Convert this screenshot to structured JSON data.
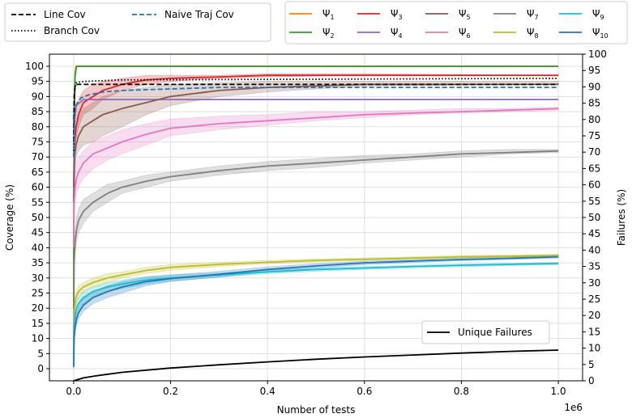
{
  "chart_data": {
    "type": "line",
    "xlabel": "Number of tests",
    "x_offset_label": "1e6",
    "ylabel_left": "Coverage (%)",
    "ylabel_right": "Failures (%)",
    "xlim": [
      -0.05,
      1.05
    ],
    "ylim_left": [
      -4,
      104
    ],
    "ylim_right": [
      0,
      100
    ],
    "x_ticks": [
      "0.0",
      "0.2",
      "0.4",
      "0.6",
      "0.8",
      "1.0"
    ],
    "x_tick_values": [
      0,
      0.2,
      0.4,
      0.6,
      0.8,
      1.0
    ],
    "y_ticks_left": [
      "0",
      "5",
      "10",
      "15",
      "20",
      "25",
      "30",
      "35",
      "40",
      "45",
      "50",
      "55",
      "60",
      "65",
      "70",
      "75",
      "80",
      "85",
      "90",
      "95",
      "100"
    ],
    "y_ticks_right": [
      "0",
      "5",
      "10",
      "15",
      "20",
      "25",
      "30",
      "35",
      "40",
      "45",
      "50",
      "55",
      "60",
      "65",
      "70",
      "75",
      "80",
      "85",
      "90",
      "95",
      "100"
    ],
    "grid": true,
    "legend_top_left": [
      {
        "label": "Line Cov",
        "style": "dashed",
        "color": "#000000"
      },
      {
        "label": "Naive Traj Cov",
        "style": "dashed",
        "color": "#1f77b4"
      },
      {
        "label": "Branch Cov",
        "style": "dotted",
        "color": "#000000"
      }
    ],
    "legend_top_right": [
      {
        "label": "Ψ",
        "sub": "1",
        "color": "#ff7f0e"
      },
      {
        "label": "Ψ",
        "sub": "2",
        "color": "#2ca02c"
      },
      {
        "label": "Ψ",
        "sub": "3",
        "color": "#d62728"
      },
      {
        "label": "Ψ",
        "sub": "4",
        "color": "#9467bd"
      },
      {
        "label": "Ψ",
        "sub": "5",
        "color": "#8c564b"
      },
      {
        "label": "Ψ",
        "sub": "6",
        "color": "#e377c2"
      },
      {
        "label": "Ψ",
        "sub": "7",
        "color": "#7f7f7f"
      },
      {
        "label": "Ψ",
        "sub": "8",
        "color": "#bcbd22"
      },
      {
        "label": "Ψ",
        "sub": "9",
        "color": "#17becf"
      },
      {
        "label": "Ψ",
        "sub": "10",
        "color": "#1f77b4"
      }
    ],
    "legend_bottom_right": {
      "label": "Unique Failures",
      "color": "#000000"
    },
    "series": [
      {
        "name": "Ψ1",
        "color": "#ff7f0e",
        "axis": "left",
        "band": false,
        "x": [
          0,
          0.001,
          0.003,
          0.005,
          1.0
        ],
        "y": [
          20,
          80,
          98,
          100,
          100
        ]
      },
      {
        "name": "Ψ2",
        "color": "#2ca02c",
        "axis": "left",
        "band": false,
        "x": [
          0,
          0.001,
          0.003,
          0.006,
          1.0
        ],
        "y": [
          20,
          85,
          97,
          100,
          100
        ]
      },
      {
        "name": "Ψ3",
        "color": "#d62728",
        "axis": "left",
        "band": true,
        "x": [
          0,
          0.002,
          0.005,
          0.01,
          0.02,
          0.04,
          0.06,
          0.1,
          0.15,
          0.2,
          0.3,
          0.4,
          0.6,
          1.0
        ],
        "y": [
          60,
          75,
          80,
          84,
          88,
          90,
          92,
          94,
          95.5,
          96,
          96.5,
          97,
          97,
          97
        ],
        "band_lo": [
          55,
          70,
          76,
          80,
          84,
          86,
          89,
          92,
          94,
          95,
          96,
          96.5,
          97,
          97
        ],
        "band_hi": [
          70,
          82,
          86,
          89,
          92,
          94,
          95,
          96,
          97,
          97,
          97,
          97.5,
          97.5,
          97
        ]
      },
      {
        "name": "Ψ4",
        "color": "#9467bd",
        "axis": "left",
        "band": false,
        "x": [
          0,
          0.002,
          0.005,
          0.02,
          1.0
        ],
        "y": [
          60,
          82,
          87,
          89,
          89
        ]
      },
      {
        "name": "Ψ5",
        "color": "#8c564b",
        "axis": "left",
        "band": true,
        "x": [
          0,
          0.002,
          0.005,
          0.01,
          0.02,
          0.04,
          0.06,
          0.1,
          0.15,
          0.2,
          0.3,
          0.4,
          0.5,
          0.6,
          1.0
        ],
        "y": [
          55,
          70,
          74,
          77,
          80,
          82,
          84,
          86,
          88,
          90,
          92,
          93,
          93.5,
          94,
          94
        ],
        "band_lo": [
          50,
          65,
          70,
          72,
          74,
          75,
          77,
          80,
          84,
          87,
          90,
          91.5,
          92.5,
          93.5,
          94
        ],
        "band_hi": [
          62,
          76,
          79,
          83,
          86,
          88,
          90,
          92,
          93,
          94,
          94.5,
          95,
          95,
          95,
          95
        ]
      },
      {
        "name": "Ψ6",
        "color": "#e377c2",
        "axis": "left",
        "band": true,
        "x": [
          0,
          0.001,
          0.003,
          0.006,
          0.01,
          0.02,
          0.04,
          0.07,
          0.1,
          0.15,
          0.2,
          0.3,
          0.4,
          0.5,
          0.6,
          0.7,
          0.8,
          0.9,
          1.0
        ],
        "y": [
          40,
          55,
          60,
          63,
          65,
          68,
          71,
          73,
          75,
          77.5,
          79.5,
          81,
          82,
          83,
          84,
          84.5,
          85,
          85.5,
          86
        ],
        "band_lo": [
          35,
          50,
          55,
          58,
          60,
          63,
          66,
          69,
          71,
          74,
          77,
          79,
          80.5,
          82,
          83,
          84,
          84.5,
          85,
          85.5
        ],
        "band_hi": [
          45,
          60,
          65,
          68,
          70,
          72,
          75,
          77,
          79,
          81,
          82.5,
          83.5,
          84,
          85,
          85,
          85.5,
          86,
          86,
          86.5
        ]
      },
      {
        "name": "Ψ7",
        "color": "#7f7f7f",
        "axis": "left",
        "band": true,
        "x": [
          0,
          0.001,
          0.003,
          0.006,
          0.01,
          0.02,
          0.04,
          0.07,
          0.1,
          0.15,
          0.2,
          0.25,
          0.3,
          0.4,
          0.5,
          0.6,
          0.7,
          0.8,
          0.9,
          1.0
        ],
        "y": [
          5,
          35,
          42,
          46,
          49,
          52,
          55,
          58,
          60,
          62,
          63.5,
          64.5,
          65.5,
          67,
          68,
          69,
          70,
          71,
          71.5,
          72
        ],
        "band_lo": [
          3,
          30,
          38,
          42,
          45,
          48,
          52,
          55,
          58,
          60,
          62,
          63,
          64,
          65.5,
          66.5,
          68,
          69,
          70,
          71,
          71.5
        ],
        "band_hi": [
          8,
          40,
          46,
          50,
          53,
          56,
          58,
          61,
          62,
          64,
          65,
          66,
          67,
          68.5,
          69.5,
          70.5,
          71,
          72,
          72.5,
          72.5
        ]
      },
      {
        "name": "Ψ8",
        "color": "#bcbd22",
        "axis": "left",
        "band": true,
        "x": [
          0,
          0.001,
          0.003,
          0.006,
          0.01,
          0.02,
          0.04,
          0.07,
          0.1,
          0.15,
          0.2,
          0.3,
          0.4,
          0.5,
          0.6,
          0.7,
          0.8,
          0.9,
          1.0
        ],
        "y": [
          2,
          18,
          22,
          24,
          25.5,
          27,
          28.5,
          30,
          31,
          32.5,
          33.5,
          34.5,
          35.2,
          35.8,
          36.2,
          36.6,
          37,
          37.2,
          37.5
        ],
        "band_lo": [
          1,
          15,
          20,
          22,
          23.5,
          25.5,
          27,
          28.5,
          30,
          31.5,
          32.5,
          33.8,
          34.7,
          35.3,
          35.8,
          36.2,
          36.6,
          36.9,
          37.2
        ],
        "band_hi": [
          3,
          21,
          24,
          26,
          27.5,
          28.5,
          30,
          31.5,
          32,
          33.5,
          34.5,
          35.2,
          35.8,
          36.3,
          36.6,
          37,
          37.4,
          37.6,
          37.8
        ]
      },
      {
        "name": "Ψ9",
        "color": "#17becf",
        "axis": "left",
        "band": true,
        "x": [
          0,
          0.001,
          0.003,
          0.006,
          0.01,
          0.02,
          0.04,
          0.07,
          0.1,
          0.15,
          0.2,
          0.3,
          0.4,
          0.5,
          0.6,
          0.7,
          0.8,
          0.9,
          1.0
        ],
        "y": [
          1,
          14,
          18,
          20,
          21.5,
          23.5,
          25.5,
          27,
          28,
          29.3,
          30,
          31,
          32,
          32.8,
          33.3,
          33.8,
          34.2,
          34.5,
          34.8
        ],
        "band_lo": [
          0.5,
          12,
          16,
          18,
          19.5,
          21.5,
          24,
          25.5,
          26.5,
          28,
          29,
          30.3,
          31.4,
          32.2,
          32.8,
          33.3,
          33.7,
          34.1,
          34.4
        ],
        "band_hi": [
          2,
          16,
          20,
          22,
          23.5,
          25.5,
          27,
          28.5,
          29.3,
          30.5,
          31,
          31.7,
          32.6,
          33.3,
          33.8,
          34.2,
          34.6,
          34.9,
          35.2
        ]
      },
      {
        "name": "Ψ10",
        "color": "#1f77b4",
        "axis": "left",
        "band": true,
        "x": [
          0,
          0.001,
          0.003,
          0.006,
          0.01,
          0.02,
          0.04,
          0.07,
          0.1,
          0.15,
          0.2,
          0.3,
          0.4,
          0.5,
          0.6,
          0.7,
          0.8,
          0.9,
          1.0
        ],
        "y": [
          0.5,
          10,
          14,
          16.5,
          18.5,
          21,
          23.5,
          25.5,
          27,
          28.8,
          29.8,
          31.2,
          32.8,
          34,
          35,
          35.6,
          36.1,
          36.5,
          37
        ],
        "band_lo": [
          0,
          8,
          12,
          14.5,
          16.5,
          19,
          21.5,
          23.5,
          25,
          27.5,
          28.8,
          30.3,
          32,
          33.3,
          34.4,
          35.1,
          35.7,
          36.1,
          36.6
        ],
        "band_hi": [
          1,
          12,
          16,
          18.5,
          20.5,
          23,
          25.5,
          27.5,
          28.8,
          30.2,
          31,
          32.2,
          33.7,
          34.7,
          35.6,
          36.1,
          36.6,
          36.9,
          37.4
        ]
      },
      {
        "name": "Line Cov",
        "color": "#000000",
        "axis": "left",
        "dash": "6,3",
        "band": false,
        "x": [
          0,
          0.001,
          0.003,
          0.005,
          0.02,
          1.0
        ],
        "y": [
          75,
          90,
          93.5,
          94,
          94,
          94
        ]
      },
      {
        "name": "Branch Cov",
        "color": "#000000",
        "axis": "left",
        "dash": "1.5,2.5",
        "band": false,
        "x": [
          0,
          0.001,
          0.003,
          0.005,
          0.02,
          0.1,
          1.0
        ],
        "y": [
          72,
          88,
          93,
          94.5,
          95,
          95.5,
          96
        ]
      },
      {
        "name": "Naive Traj Cov",
        "color": "#1f77b4",
        "axis": "left",
        "dash": "6,3",
        "band": false,
        "x": [
          0,
          0.002,
          0.006,
          0.015,
          0.03,
          0.06,
          0.1,
          0.2,
          0.3,
          0.5,
          1.0
        ],
        "y": [
          70,
          84,
          87.5,
          89.5,
          90.5,
          91.5,
          92,
          92.5,
          93,
          93,
          93
        ]
      },
      {
        "name": "Unique Failures",
        "color": "#000000",
        "axis": "right",
        "band": false,
        "x": [
          0,
          0.02,
          0.05,
          0.1,
          0.2,
          0.3,
          0.4,
          0.5,
          0.6,
          0.7,
          0.8,
          0.9,
          1.0
        ],
        "y": [
          0,
          0.9,
          1.6,
          2.6,
          3.9,
          4.9,
          5.8,
          6.6,
          7.3,
          7.9,
          8.5,
          9.0,
          9.4
        ]
      }
    ]
  }
}
